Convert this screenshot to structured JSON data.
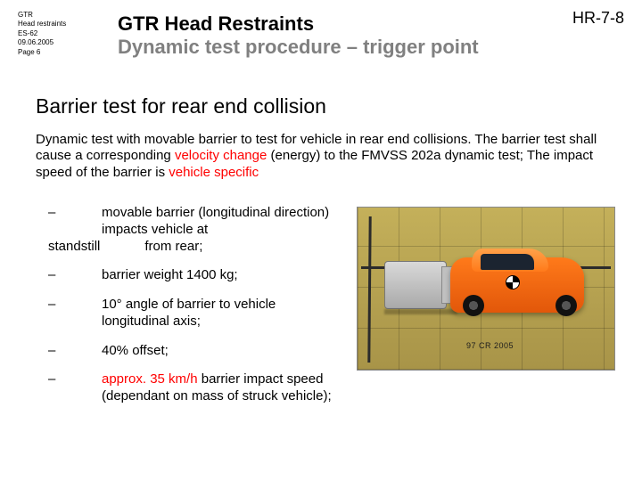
{
  "meta": {
    "line1": "GTR",
    "line2": "Head restraints",
    "line3": "ES-62",
    "line4": "09.06.2005",
    "line5": "Page 6"
  },
  "docId": "HR-7-8",
  "title": {
    "main": "GTR Head Restraints",
    "sub": "Dynamic test procedure – trigger point"
  },
  "sectionTitle": "Barrier test for rear end collision",
  "intro": {
    "t1": "Dynamic test with movable barrier to test for vehicle in rear end collisions. The barrier test shall cause a corresponding ",
    "h1": "velocity change",
    "t2": " (energy) to the FMVSS 202a dynamic test; The impact speed of the barrier is ",
    "h2": "vehicle specific"
  },
  "bullets": {
    "b1a": "movable barrier (longitudinal direction) impacts vehicle at",
    "b1b": "standstill",
    "b1c": "from rear;",
    "b2": "barrier weight 1400 kg;",
    "b3": "10° angle of barrier to vehicle   longitudinal axis;",
    "b4": "40% offset;",
    "b5a": "approx. 35 km/h",
    "b5b": " barrier impact speed",
    "b5c": "(dependant on mass of struck vehicle);"
  },
  "imgLabel": "97 CR 2005"
}
